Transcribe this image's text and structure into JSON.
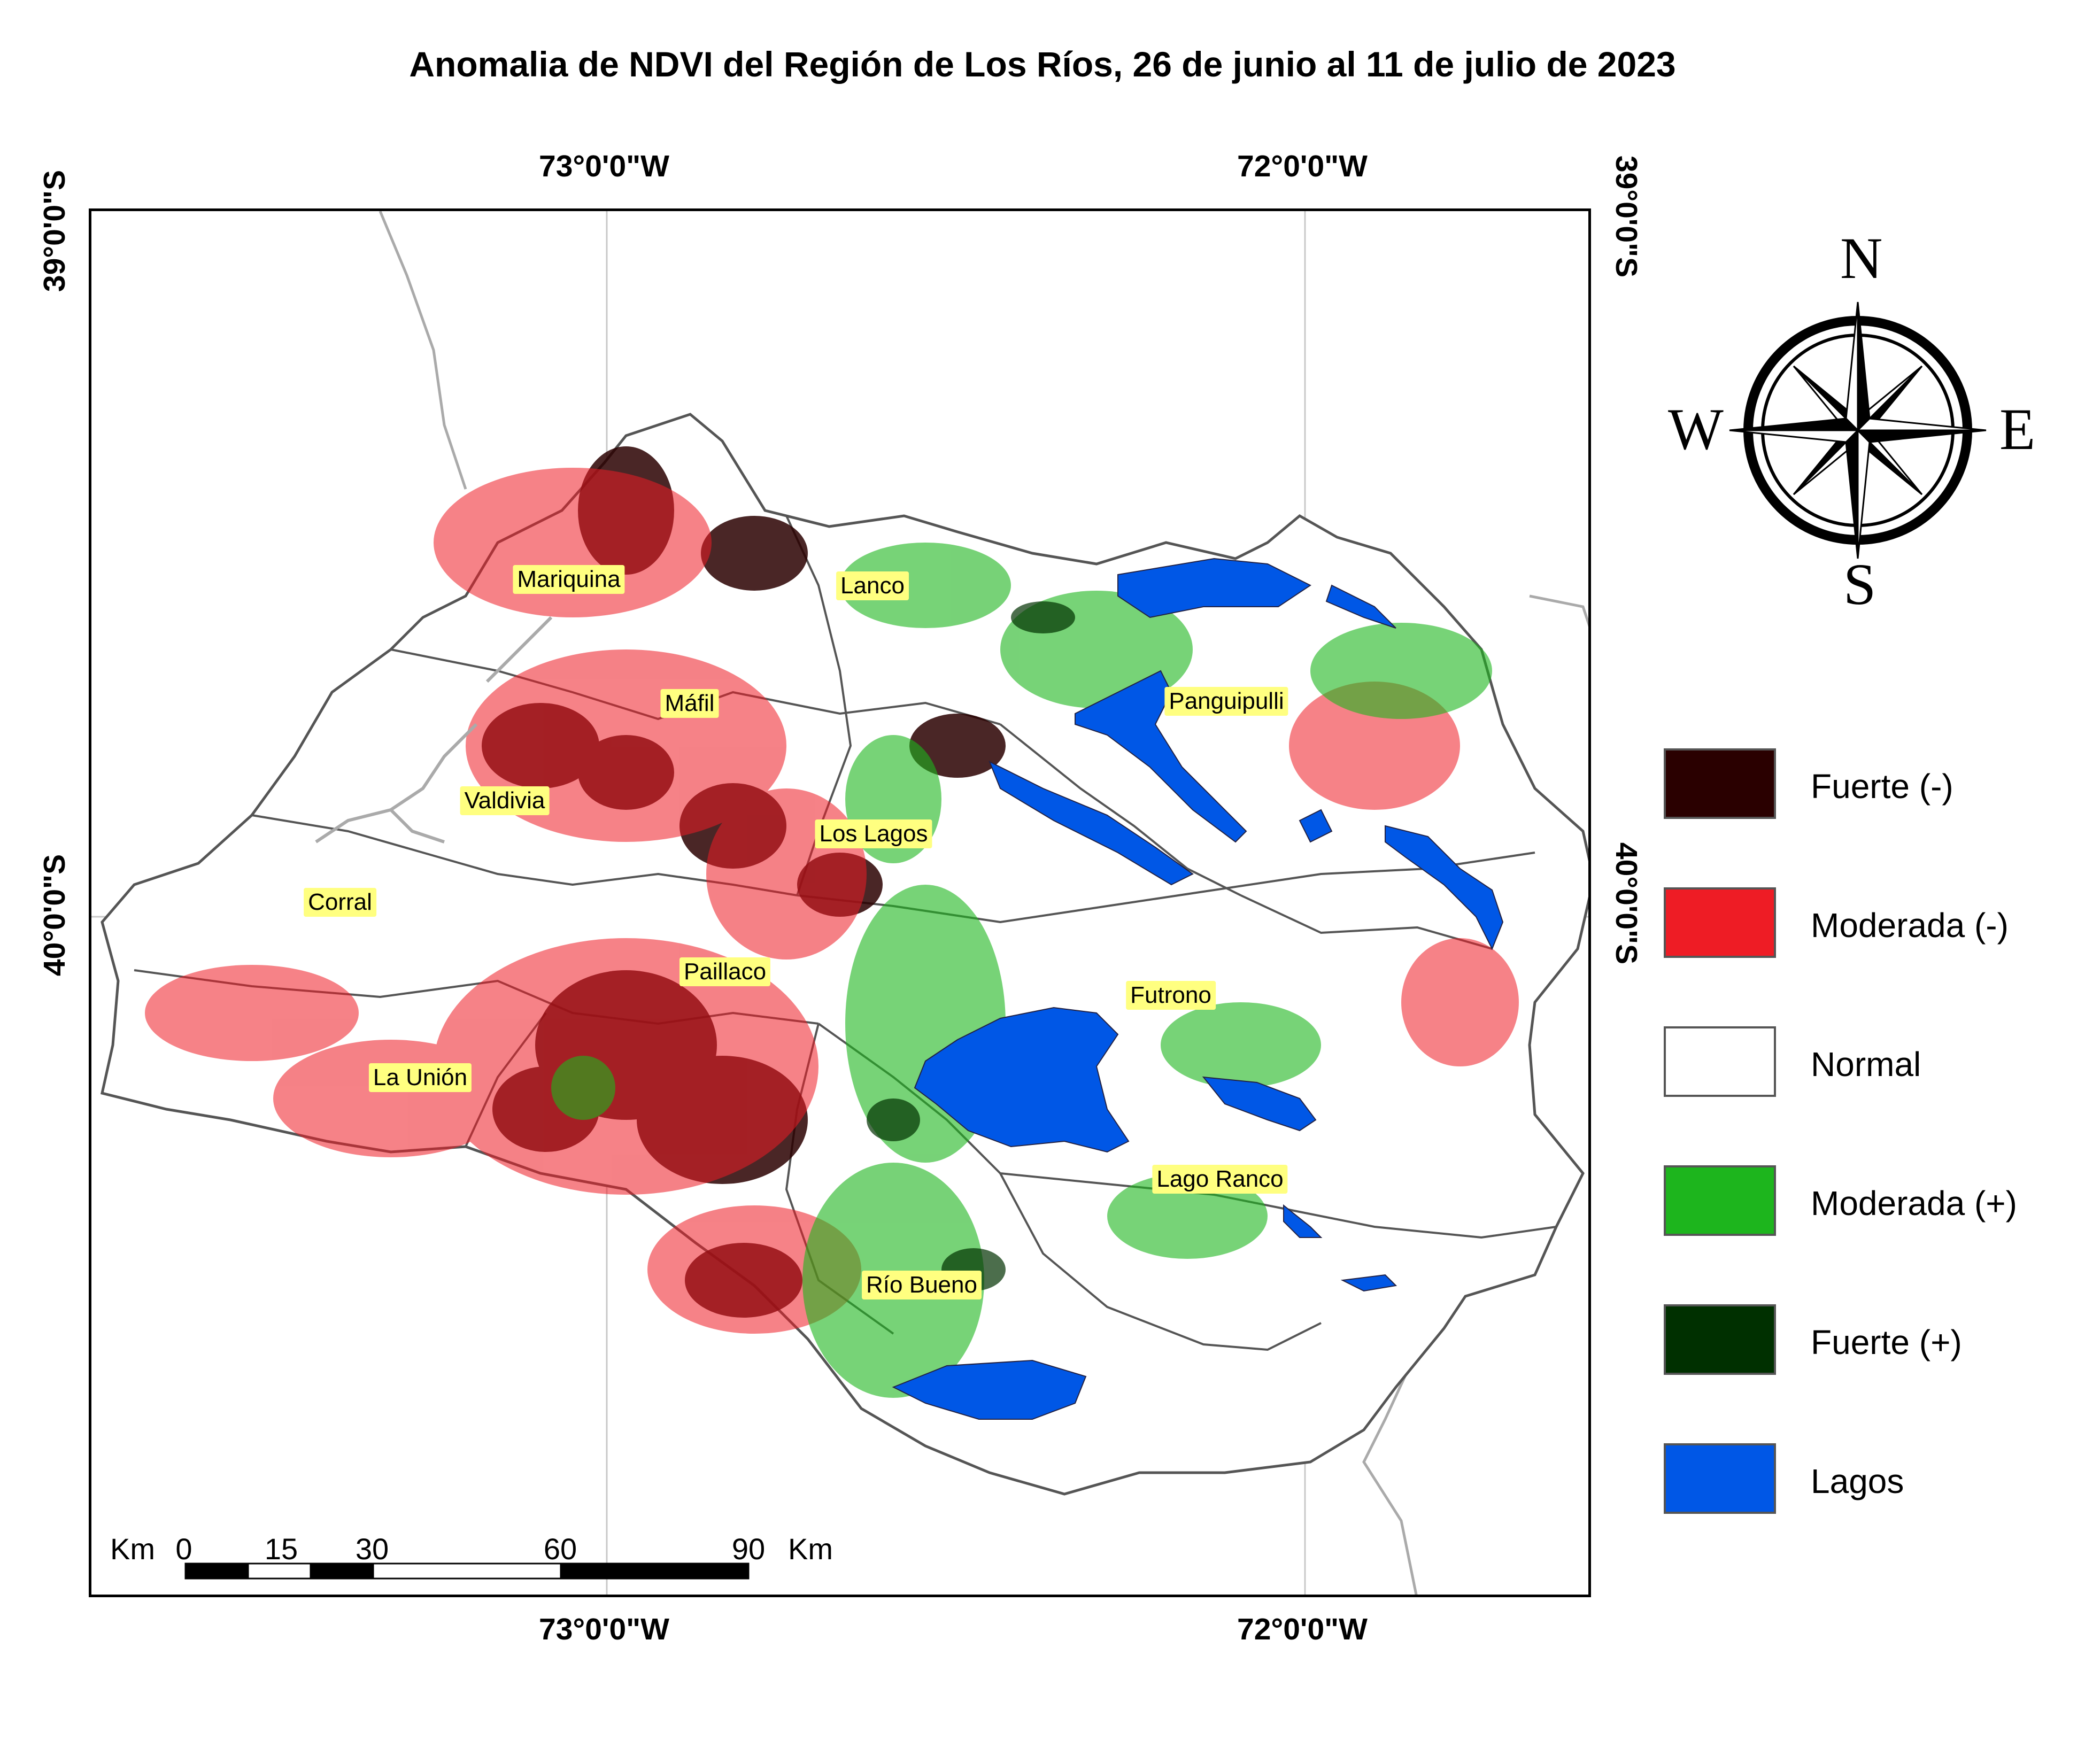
{
  "title": "Anomalia de NDVI del Región de Los Ríos, 26 de junio al 11 de julio de 2023",
  "coords": {
    "lon_west": "73°0'0\"W",
    "lon_east": "72°0'0\"W",
    "lat_north": "39°0'0\"S",
    "lat_mid": "40°0'0\"S"
  },
  "places": [
    {
      "name": "Mariquina"
    },
    {
      "name": "Lanco"
    },
    {
      "name": "Máfil"
    },
    {
      "name": "Panguipulli"
    },
    {
      "name": "Valdivia"
    },
    {
      "name": "Los Lagos"
    },
    {
      "name": "Corral"
    },
    {
      "name": "Paillaco"
    },
    {
      "name": "Futrono"
    },
    {
      "name": "La Unión"
    },
    {
      "name": "Lago Ranco"
    },
    {
      "name": "Río Bueno"
    }
  ],
  "legend": [
    {
      "label": "Fuerte (-)",
      "color": "#2a0000"
    },
    {
      "label": "Moderada (-)",
      "color": "#ee1c25"
    },
    {
      "label": "Normal",
      "color": "#ffffff"
    },
    {
      "label": "Moderada (+)",
      "color": "#1db51d"
    },
    {
      "label": "Fuerte (+)",
      "color": "#003000"
    },
    {
      "label": "Lagos",
      "color": "#0057e6"
    }
  ],
  "scale_bar": {
    "unit_left": "Km",
    "ticks": [
      "0",
      "15",
      "30",
      "60",
      "90"
    ],
    "unit_right": "Km"
  },
  "compass": {
    "n": "N",
    "s": "S",
    "e": "E",
    "w": "W"
  }
}
